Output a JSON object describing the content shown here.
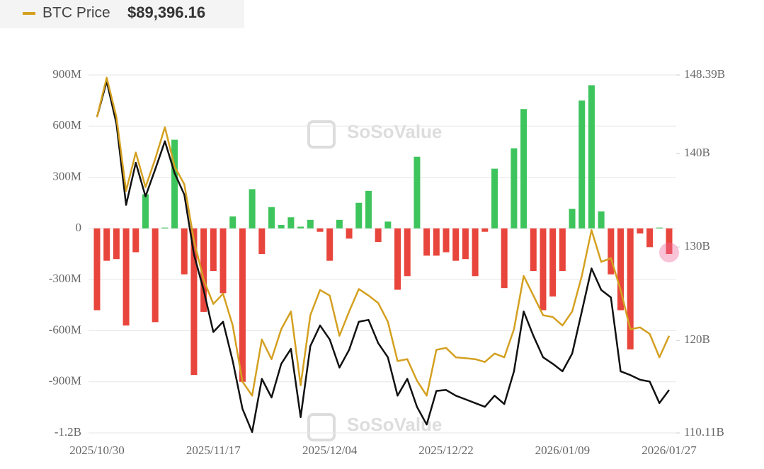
{
  "chart_data": {
    "type": "bar-line",
    "header_label": "BTC Price",
    "header_value": "$89,396.16",
    "watermark": "SoSoValue",
    "categories": [
      "2025/10/30",
      null,
      null,
      null,
      null,
      null,
      null,
      null,
      null,
      null,
      null,
      null,
      "2025/11/17",
      null,
      null,
      null,
      null,
      null,
      null,
      null,
      null,
      null,
      null,
      null,
      "2025/12/04",
      null,
      null,
      null,
      null,
      null,
      null,
      null,
      null,
      null,
      null,
      null,
      "2025/12/22",
      null,
      null,
      null,
      null,
      null,
      null,
      null,
      null,
      null,
      null,
      null,
      "2026/01/09",
      null,
      null,
      null,
      null,
      null,
      null,
      null,
      null,
      null,
      null,
      "2026/01/27"
    ],
    "bars": {
      "positive_color": "#3ec45c",
      "negative_color": "#e8453c",
      "values": [
        -480000000,
        -190000000,
        -180000000,
        -570000000,
        -140000000,
        200000000,
        -550000000,
        5000000,
        520000000,
        -270000000,
        -860000000,
        -490000000,
        -250000000,
        -380000000,
        70000000,
        -900000000,
        230000000,
        -150000000,
        125000000,
        20000000,
        65000000,
        10000000,
        50000000,
        -20000000,
        -190000000,
        50000000,
        -60000000,
        150000000,
        220000000,
        -80000000,
        40000000,
        -360000000,
        -280000000,
        420000000,
        -160000000,
        -160000000,
        -140000000,
        -190000000,
        -180000000,
        -280000000,
        -20000000,
        350000000,
        -350000000,
        470000000,
        700000000,
        -250000000,
        -480000000,
        -400000000,
        -250000000,
        115000000,
        750000000,
        840000000,
        100000000,
        -270000000,
        -480000000,
        -710000000,
        -30000000,
        -110000000,
        5000000,
        -150000000
      ]
    },
    "series": [
      {
        "color": "#111111",
        "axis": "y2",
        "values": [
          143.9,
          147.7,
          143.2,
          134.5,
          139.0,
          135.4,
          138.3,
          141.3,
          137.9,
          135.6,
          129.2,
          125.4,
          120.9,
          122.0,
          117.8,
          112.7,
          110.2,
          115.9,
          113.9,
          117.5,
          119.1,
          111.8,
          119.4,
          121.6,
          120.1,
          117.1,
          119.0,
          122.0,
          122.2,
          119.7,
          118.2,
          114.1,
          115.9,
          112.9,
          111.0,
          114.6,
          114.7,
          114.1,
          113.7,
          113.3,
          112.9,
          114.1,
          113.2,
          116.7,
          123.1,
          120.5,
          118.2,
          117.5,
          116.7,
          118.6,
          123.1,
          127.7,
          125.4,
          124.6,
          116.7,
          116.3,
          115.8,
          115.6,
          113.3,
          114.7
        ]
      },
      {
        "name": "BTC Price",
        "color": "#d4a020",
        "axis": "y2",
        "values": [
          143.9,
          148.1,
          143.9,
          136.0,
          140.1,
          136.4,
          139.4,
          142.8,
          138.6,
          136.7,
          130.7,
          126.5,
          123.9,
          125.0,
          121.6,
          115.6,
          114.1,
          120.1,
          118.0,
          121.2,
          123.1,
          115.2,
          122.7,
          125.4,
          124.8,
          120.5,
          123.1,
          125.5,
          124.8,
          124.0,
          122.0,
          117.8,
          118.0,
          115.7,
          114.1,
          119.0,
          119.2,
          118.2,
          118.1,
          118.0,
          117.7,
          118.6,
          118.2,
          121.2,
          126.9,
          124.8,
          122.7,
          122.5,
          121.6,
          123.1,
          126.9,
          131.8,
          128.4,
          128.8,
          125.4,
          121.2,
          121.4,
          120.7,
          118.2,
          120.5
        ]
      }
    ],
    "ylim": [
      -1200000000,
      900000000
    ],
    "yticks": [
      {
        "value": -1200000000,
        "label": "-1.2B"
      },
      {
        "value": -900000000,
        "label": "-900M"
      },
      {
        "value": -600000000,
        "label": "-600M"
      },
      {
        "value": -300000000,
        "label": "-300M"
      },
      0,
      {
        "value": 300000000,
        "label": "300M"
      },
      {
        "value": 600000000,
        "label": "600M"
      },
      {
        "value": 900000000,
        "label": "900M"
      }
    ],
    "y2lim": [
      110.11,
      148.39
    ],
    "y2ticks": [
      {
        "value": 110.11,
        "label": "110.11B"
      },
      {
        "value": 120,
        "label": "120B"
      },
      {
        "value": 130,
        "label": "130B"
      },
      {
        "value": 140,
        "label": "140B"
      },
      {
        "value": 148.39,
        "label": "148.39B"
      }
    ],
    "grid": true
  }
}
